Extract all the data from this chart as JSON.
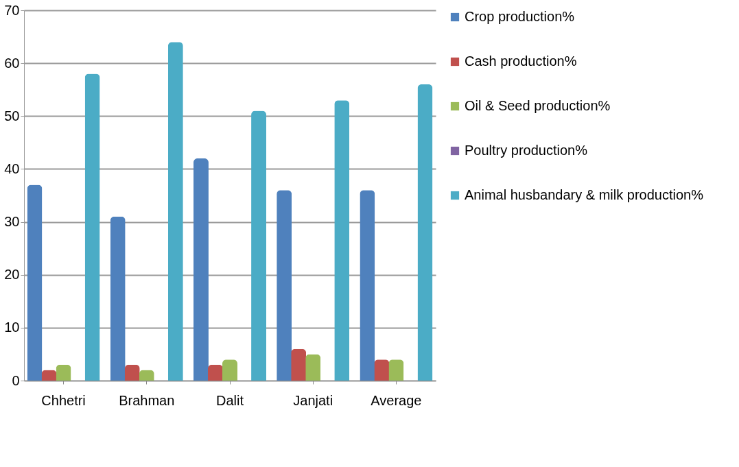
{
  "chart_data": {
    "type": "bar",
    "categories": [
      "Chhetri",
      "Brahman",
      "Dalit",
      "Janjati",
      "Average"
    ],
    "series": [
      {
        "name": "Crop production%",
        "color": "#4f81bd",
        "values": [
          37,
          31,
          42,
          36,
          36
        ]
      },
      {
        "name": "Cash production%",
        "color": "#c0504d",
        "values": [
          2,
          3,
          3,
          6,
          4
        ]
      },
      {
        "name": "Oil & Seed production%",
        "color": "#9bbb59",
        "values": [
          3,
          2,
          4,
          5,
          4
        ]
      },
      {
        "name": "Poultry production%",
        "color": "#8064a2",
        "values": [
          0,
          0,
          0,
          0,
          0
        ]
      },
      {
        "name": "Animal husbandary & milk production%",
        "color": "#4bacc6",
        "values": [
          58,
          64,
          51,
          53,
          56
        ]
      }
    ],
    "ylim": [
      0,
      70
    ],
    "yticks": [
      0,
      10,
      20,
      30,
      40,
      50,
      60,
      70
    ],
    "grid": "y",
    "legend": "right"
  }
}
